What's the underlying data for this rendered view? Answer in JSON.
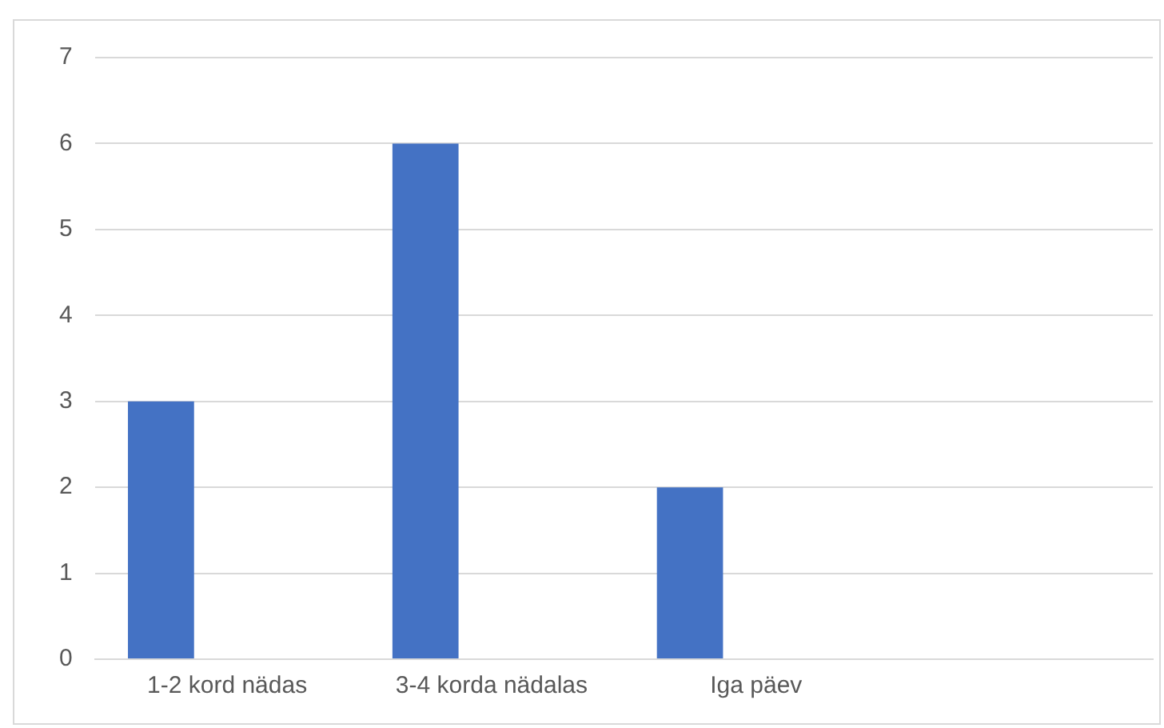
{
  "chart_data": {
    "type": "bar",
    "categories": [
      "1-2 kord nädas",
      "3-4 korda nädalas",
      "Iga päev",
      null
    ],
    "values": [
      3,
      6,
      2,
      null
    ],
    "color": "#4472c4",
    "ylim": [
      0,
      7
    ],
    "yticks": [
      0,
      1,
      2,
      3,
      4,
      5,
      6,
      7
    ],
    "grid": "y",
    "legend": false
  }
}
